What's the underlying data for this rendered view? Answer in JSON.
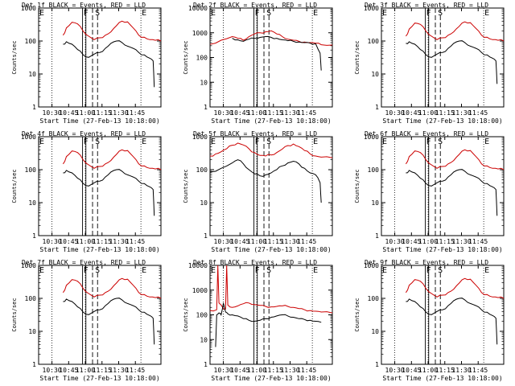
{
  "figure": {
    "x_axis_label": "Start Time (27-Feb-13 10:18:00)",
    "y_axis_label": "Counts/sec",
    "time_ticks": [
      "10:30",
      "10:45",
      "11:00",
      "11:15",
      "11:30",
      "11:45"
    ],
    "y_ticks": [
      "1",
      "10",
      "100",
      "1000",
      "10000"
    ]
  },
  "colors": {
    "events": "#000000",
    "lld": "#cc0000",
    "axes": "#000000"
  },
  "chart_data": [
    {
      "type": "line",
      "title": "Det 1f BLACK = Events, RED = LLD",
      "detector": "1f",
      "markers": [
        "E",
        "F",
        "S",
        "E"
      ],
      "x_tick_labels": [
        "10:30",
        "10:45",
        "11:00",
        "11:15",
        "11:30",
        "11:45"
      ],
      "xlabel": "Start Time (27-Feb-13 10:18:00)",
      "ylabel": "Counts/sec",
      "y_scale": "log",
      "ylim": [
        1,
        1000
      ],
      "series": [
        {
          "name": "LLD",
          "color": "#cc0000",
          "time_min": [
            22,
            25,
            30,
            35,
            40,
            45,
            50,
            55,
            60,
            65,
            70,
            75,
            80,
            85,
            90,
            95,
            100,
            105,
            110
          ],
          "values": [
            150,
            250,
            370,
            330,
            200,
            140,
            110,
            125,
            150,
            190,
            290,
            400,
            380,
            250,
            150,
            130,
            110,
            105,
            100
          ]
        },
        {
          "name": "Events",
          "color": "#000000",
          "time_min": [
            22,
            25,
            30,
            35,
            40,
            45,
            50,
            55,
            60,
            65,
            70,
            75,
            80,
            85,
            90,
            95,
            100,
            103,
            104
          ],
          "values": [
            80,
            95,
            80,
            55,
            38,
            32,
            40,
            45,
            60,
            85,
            100,
            90,
            70,
            60,
            45,
            38,
            30,
            25,
            4
          ]
        }
      ]
    },
    {
      "type": "line",
      "title": "Det 2f BLACK = Events, RED = LLD",
      "detector": "2f",
      "markers": [
        "E",
        "F",
        "S",
        "E"
      ],
      "x_tick_labels": [
        "10:30",
        "10:45",
        "11:00",
        "11:15",
        "11:30",
        "11:45"
      ],
      "xlabel": "Start Time (27-Feb-13 10:18:00)",
      "ylabel": "Counts/sec",
      "y_scale": "log",
      "ylim": [
        1,
        10000
      ],
      "series": [
        {
          "name": "LLD",
          "color": "#cc0000",
          "time_min": [
            0,
            10,
            20,
            25,
            30,
            35,
            40,
            45,
            50,
            55,
            60,
            65,
            70,
            75,
            80,
            85,
            90,
            95,
            100,
            110
          ],
          "values": [
            340,
            500,
            700,
            600,
            500,
            700,
            900,
            1000,
            1100,
            1200,
            900,
            700,
            550,
            500,
            450,
            420,
            400,
            380,
            330,
            320
          ]
        },
        {
          "name": "Events",
          "color": "#000000",
          "time_min": [
            20,
            25,
            30,
            35,
            40,
            45,
            50,
            55,
            60,
            65,
            70,
            75,
            80,
            85,
            90,
            95,
            99,
            100
          ],
          "values": [
            600,
            520,
            450,
            550,
            600,
            650,
            700,
            650,
            600,
            520,
            480,
            450,
            420,
            400,
            380,
            360,
            150,
            30
          ]
        }
      ]
    },
    {
      "type": "line",
      "title": "Det 3f BLACK = Events, RED = LLD",
      "detector": "3f",
      "markers": [
        "E",
        "F",
        "S",
        "E"
      ],
      "x_tick_labels": [
        "10:30",
        "10:45",
        "11:00",
        "11:15",
        "11:30",
        "11:45"
      ],
      "xlabel": "Start Time (27-Feb-13 10:18:00)",
      "ylabel": "Counts/sec",
      "y_scale": "log",
      "ylim": [
        1,
        1000
      ],
      "series": [
        {
          "name": "LLD",
          "color": "#cc0000",
          "time_min": [
            22,
            25,
            30,
            35,
            40,
            45,
            50,
            55,
            60,
            65,
            70,
            75,
            80,
            85,
            90,
            95,
            100,
            105,
            110
          ],
          "values": [
            140,
            230,
            350,
            320,
            200,
            140,
            110,
            125,
            150,
            190,
            280,
            380,
            360,
            240,
            150,
            130,
            110,
            105,
            100
          ]
        },
        {
          "name": "Events",
          "color": "#000000",
          "time_min": [
            22,
            25,
            30,
            35,
            40,
            45,
            50,
            55,
            60,
            65,
            70,
            75,
            80,
            85,
            90,
            95,
            100,
            103,
            104
          ],
          "values": [
            85,
            95,
            80,
            55,
            38,
            32,
            40,
            45,
            60,
            85,
            100,
            90,
            70,
            60,
            45,
            38,
            30,
            25,
            5
          ]
        }
      ]
    },
    {
      "type": "line",
      "title": "Det 4f BLACK = Events, RED = LLD",
      "detector": "4f",
      "markers": [
        "E",
        "F",
        "S",
        "E"
      ],
      "x_tick_labels": [
        "10:30",
        "10:45",
        "11:00",
        "11:15",
        "11:30",
        "11:45"
      ],
      "xlabel": "Start Time (27-Feb-13 10:18:00)",
      "ylabel": "Counts/sec",
      "y_scale": "log",
      "ylim": [
        1,
        1000
      ],
      "series": [
        {
          "name": "LLD",
          "color": "#cc0000",
          "time_min": [
            22,
            25,
            30,
            35,
            40,
            45,
            50,
            55,
            60,
            65,
            70,
            75,
            80,
            85,
            90,
            95,
            100,
            105,
            110
          ],
          "values": [
            150,
            250,
            370,
            330,
            200,
            140,
            110,
            125,
            150,
            190,
            290,
            400,
            380,
            250,
            150,
            130,
            110,
            105,
            100
          ]
        },
        {
          "name": "Events",
          "color": "#000000",
          "time_min": [
            22,
            25,
            30,
            35,
            40,
            45,
            50,
            55,
            60,
            65,
            70,
            75,
            80,
            85,
            90,
            95,
            100,
            103,
            104
          ],
          "values": [
            80,
            95,
            80,
            55,
            38,
            32,
            40,
            45,
            60,
            85,
            100,
            90,
            70,
            60,
            45,
            38,
            30,
            25,
            4
          ]
        }
      ]
    },
    {
      "type": "line",
      "title": "Det 5f BLACK = Events, RED = LLD",
      "detector": "5f",
      "markers": [
        "E",
        "F",
        "S",
        "E"
      ],
      "x_tick_labels": [
        "10:30",
        "10:45",
        "11:00",
        "11:15",
        "11:30",
        "11:45"
      ],
      "xlabel": "Start Time (27-Feb-13 10:18:00)",
      "ylabel": "Counts/sec",
      "y_scale": "log",
      "ylim": [
        1,
        1000
      ],
      "series": [
        {
          "name": "LLD",
          "color": "#cc0000",
          "time_min": [
            0,
            5,
            10,
            15,
            20,
            25,
            30,
            35,
            40,
            45,
            50,
            55,
            60,
            65,
            70,
            75,
            80,
            85,
            90,
            95,
            100,
            110
          ],
          "values": [
            260,
            300,
            350,
            430,
            550,
            640,
            560,
            430,
            330,
            270,
            260,
            280,
            330,
            420,
            540,
            600,
            500,
            380,
            300,
            260,
            240,
            230
          ]
        },
        {
          "name": "Events",
          "color": "#000000",
          "time_min": [
            0,
            10,
            20,
            25,
            30,
            35,
            40,
            45,
            50,
            55,
            60,
            65,
            70,
            75,
            80,
            85,
            90,
            95,
            99,
            100
          ],
          "values": [
            85,
            110,
            160,
            200,
            150,
            100,
            75,
            65,
            70,
            80,
            100,
            130,
            160,
            180,
            150,
            110,
            80,
            70,
            40,
            10
          ]
        }
      ]
    },
    {
      "type": "line",
      "title": "Det 6f BLACK = Events, RED = LLD",
      "detector": "6f",
      "markers": [
        "E",
        "F",
        "S",
        "E"
      ],
      "x_tick_labels": [
        "10:30",
        "10:45",
        "11:00",
        "11:15",
        "11:30",
        "11:45"
      ],
      "xlabel": "Start Time (27-Feb-13 10:18:00)",
      "ylabel": "Counts/sec",
      "y_scale": "log",
      "ylim": [
        1,
        1000
      ],
      "series": [
        {
          "name": "LLD",
          "color": "#cc0000",
          "time_min": [
            22,
            25,
            30,
            35,
            40,
            45,
            50,
            55,
            60,
            65,
            70,
            75,
            80,
            85,
            90,
            95,
            100,
            105,
            110
          ],
          "values": [
            150,
            250,
            370,
            330,
            200,
            140,
            110,
            125,
            150,
            190,
            290,
            400,
            380,
            250,
            150,
            130,
            110,
            105,
            100
          ]
        },
        {
          "name": "Events",
          "color": "#000000",
          "time_min": [
            22,
            25,
            30,
            35,
            40,
            45,
            50,
            55,
            60,
            65,
            70,
            75,
            80,
            85,
            90,
            95,
            100,
            103,
            104
          ],
          "values": [
            80,
            95,
            80,
            55,
            38,
            32,
            40,
            45,
            60,
            85,
            100,
            90,
            70,
            60,
            45,
            38,
            30,
            25,
            4
          ]
        }
      ]
    },
    {
      "type": "line",
      "title": "Det 7f BLACK = Events, RED = LLD",
      "detector": "7f",
      "markers": [
        "E",
        "F",
        "S",
        "E"
      ],
      "x_tick_labels": [
        "10:30",
        "10:45",
        "11:00",
        "11:15",
        "11:30",
        "11:45"
      ],
      "xlabel": "Start Time (27-Feb-13 10:18:00)",
      "ylabel": "Counts/sec",
      "y_scale": "log",
      "ylim": [
        1,
        1000
      ],
      "series": [
        {
          "name": "LLD",
          "color": "#cc0000",
          "time_min": [
            22,
            25,
            30,
            35,
            40,
            45,
            50,
            55,
            60,
            65,
            70,
            75,
            80,
            85,
            90,
            95,
            100,
            105,
            110
          ],
          "values": [
            150,
            250,
            370,
            330,
            200,
            140,
            110,
            125,
            150,
            190,
            290,
            400,
            380,
            250,
            150,
            130,
            110,
            105,
            100
          ]
        },
        {
          "name": "Events",
          "color": "#000000",
          "time_min": [
            22,
            25,
            30,
            35,
            40,
            45,
            50,
            55,
            60,
            65,
            70,
            75,
            80,
            85,
            90,
            95,
            100,
            103,
            104
          ],
          "values": [
            80,
            95,
            80,
            55,
            38,
            32,
            40,
            45,
            60,
            85,
            100,
            90,
            70,
            60,
            45,
            38,
            30,
            25,
            4
          ]
        }
      ]
    },
    {
      "type": "line",
      "title": "Det 8f BLACK = Events, RED = LLD",
      "detector": "8f",
      "markers": [
        "E",
        "F",
        "S",
        "E"
      ],
      "x_tick_labels": [
        "10:30",
        "10:45",
        "11:00",
        "11:15",
        "11:30",
        "11:45"
      ],
      "xlabel": "Start Time (27-Feb-13 10:18:00)",
      "ylabel": "Counts/sec",
      "y_scale": "log",
      "ylim": [
        1,
        10000
      ],
      "series": [
        {
          "name": "LLD",
          "color": "#cc0000",
          "time_min": [
            0,
            6,
            7,
            8,
            12,
            14,
            15,
            16,
            20,
            25,
            30,
            35,
            40,
            45,
            50,
            55,
            60,
            65,
            70,
            75,
            80,
            85,
            90,
            95,
            100,
            110
          ],
          "values": [
            150,
            160,
            10000,
            300,
            180,
            170,
            10000,
            250,
            200,
            230,
            280,
            300,
            260,
            240,
            220,
            210,
            220,
            230,
            220,
            200,
            180,
            160,
            150,
            140,
            130,
            120
          ]
        },
        {
          "name": "Events",
          "color": "#000000",
          "time_min": [
            5,
            6,
            8,
            9,
            10,
            12,
            14,
            16,
            20,
            25,
            30,
            35,
            40,
            45,
            50,
            55,
            60,
            65,
            70,
            75,
            80,
            85,
            90,
            95,
            100
          ],
          "values": [
            5,
            100,
            120,
            110,
            100,
            300,
            130,
            110,
            100,
            90,
            70,
            60,
            55,
            60,
            70,
            80,
            90,
            100,
            90,
            80,
            70,
            65,
            60,
            55,
            50
          ]
        }
      ]
    },
    {
      "type": "line",
      "title": "Det 9f BLACK = Events, RED = LLD",
      "detector": "9f",
      "markers": [
        "E",
        "F",
        "S",
        "E"
      ],
      "x_tick_labels": [
        "10:30",
        "10:45",
        "11:00",
        "11:15",
        "11:30",
        "11:45"
      ],
      "xlabel": "Start Time (27-Feb-13 10:18:00)",
      "ylabel": "Counts/sec",
      "y_scale": "log",
      "ylim": [
        1,
        1000
      ],
      "series": [
        {
          "name": "LLD",
          "color": "#cc0000",
          "time_min": [
            22,
            25,
            30,
            35,
            40,
            45,
            50,
            55,
            60,
            65,
            70,
            75,
            80,
            85,
            90,
            95,
            100,
            105,
            110
          ],
          "values": [
            150,
            250,
            370,
            330,
            200,
            140,
            110,
            125,
            150,
            190,
            290,
            400,
            380,
            250,
            150,
            130,
            110,
            105,
            100
          ]
        },
        {
          "name": "Events",
          "color": "#000000",
          "time_min": [
            22,
            25,
            30,
            35,
            40,
            45,
            50,
            55,
            60,
            65,
            70,
            75,
            80,
            85,
            90,
            95,
            100,
            103,
            104
          ],
          "values": [
            80,
            95,
            80,
            55,
            38,
            32,
            40,
            45,
            60,
            85,
            100,
            90,
            70,
            60,
            45,
            38,
            30,
            25,
            4
          ]
        }
      ]
    }
  ]
}
